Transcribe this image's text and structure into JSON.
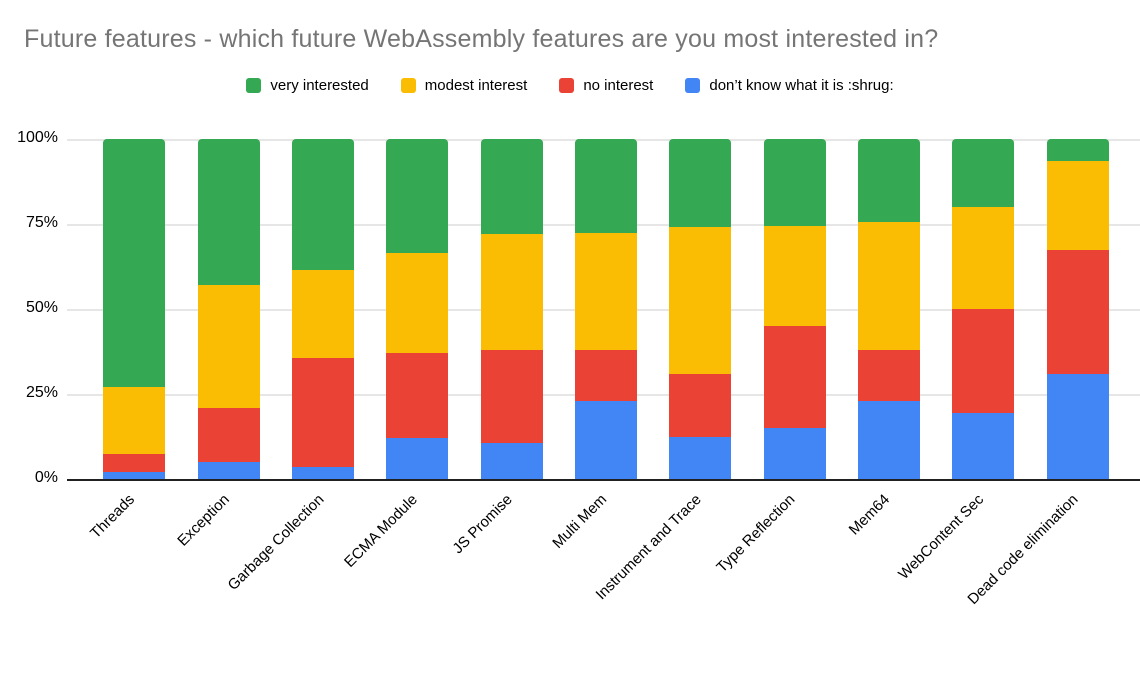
{
  "title": "Future features - which future WebAssembly features are you most interested in?",
  "y_axis": {
    "tick_labels": [
      "100%",
      "75%",
      "50%",
      "25%",
      "0%"
    ]
  },
  "colors": {
    "very_interested": "#34a853",
    "modest_interest": "#fbbc04",
    "no_interest": "#ea4335",
    "dont_know": "#4285f4",
    "title_text": "#757575",
    "gridline": "#e6e6e6",
    "axis_line": "#212121",
    "label_text": "#000000"
  },
  "chart_data": {
    "type": "bar",
    "stacked": true,
    "percent_stacked": true,
    "title": "Future features - which future WebAssembly features are you most interested in?",
    "xlabel": "",
    "ylabel": "",
    "ylim": [
      0,
      100
    ],
    "grid": true,
    "legend_position": "top",
    "categories": [
      "Threads",
      "Exception",
      "Garbage Collection",
      "ECMA Module",
      "JS Promise",
      "Multi Mem",
      "Instrument and Trace",
      "Type Reflection",
      "Mem64",
      "WebContent Sec",
      "Dead code elimination"
    ],
    "series": [
      {
        "name": "very interested",
        "color": "#34a853",
        "values": [
          73,
          43,
          38.5,
          33.5,
          28,
          27.5,
          26,
          25.5,
          24.5,
          20,
          6.5
        ]
      },
      {
        "name": "modest interest",
        "color": "#fbbc04",
        "values": [
          19.5,
          36,
          26,
          29.5,
          34,
          34.5,
          43,
          29.5,
          37.5,
          30,
          26
        ]
      },
      {
        "name": "no interest",
        "color": "#ea4335",
        "values": [
          5.5,
          16,
          32,
          25,
          27.5,
          15,
          18.5,
          30,
          15,
          30.5,
          36.5
        ]
      },
      {
        "name": "don’t know what it is :shrug:",
        "color": "#4285f4",
        "values": [
          2,
          5,
          3.5,
          12,
          10.5,
          23,
          12.5,
          15,
          23,
          19.5,
          31
        ]
      }
    ]
  }
}
